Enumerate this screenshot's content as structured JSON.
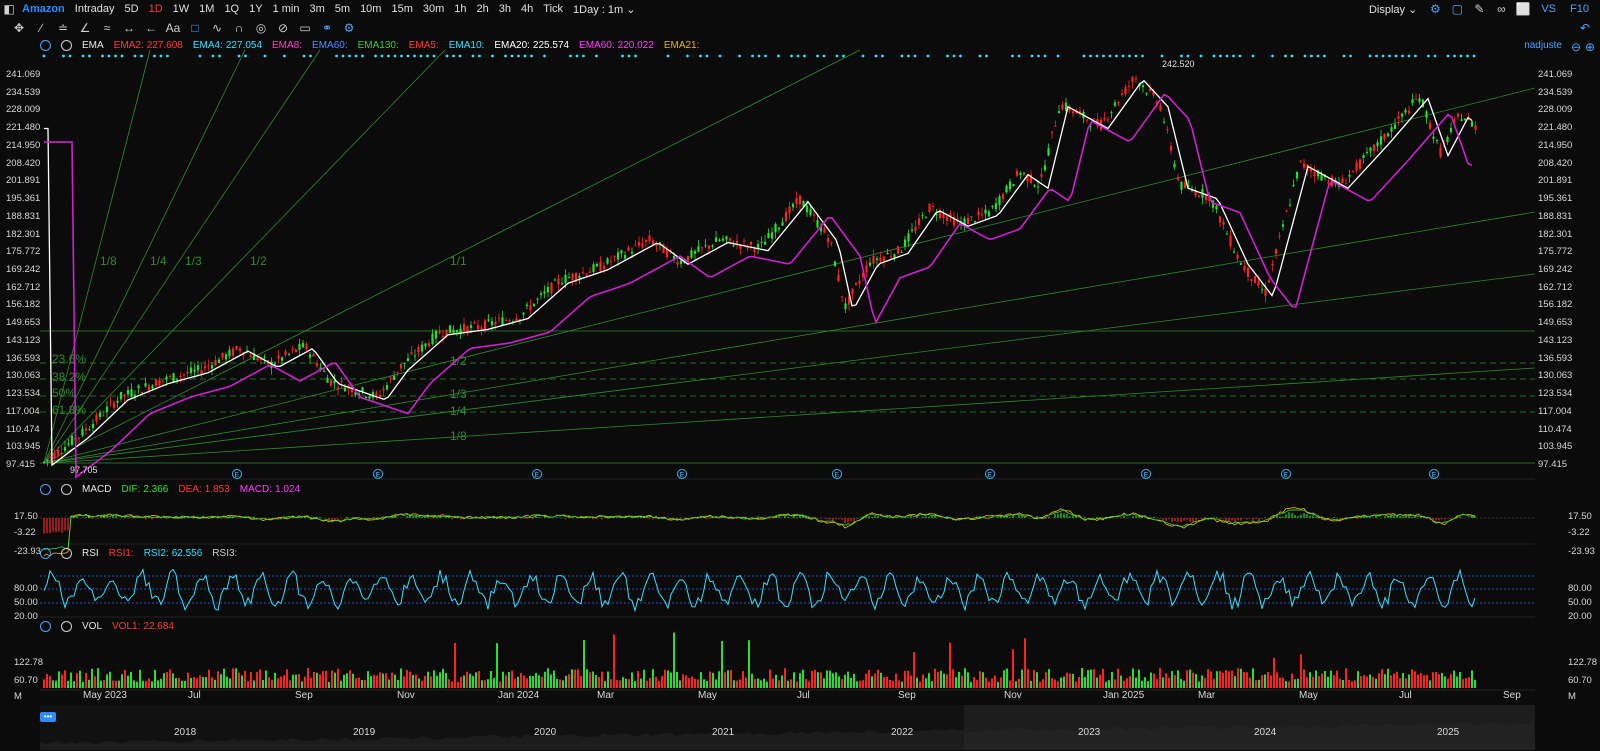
{
  "toolbar": {
    "title": "Amazon",
    "periods": [
      "Intraday",
      "5D",
      "1D",
      "1W",
      "1M",
      "1Q",
      "1Y",
      "1 min",
      "3m",
      "5m",
      "10m",
      "15m",
      "30m",
      "1h",
      "2h",
      "3h",
      "4h",
      "Tick"
    ],
    "active_period": "1D",
    "interval_select": "1Day : 1m",
    "display_label": "Display",
    "vs_label": "VS",
    "f10_label": "F10"
  },
  "main_legend": {
    "indicator": "EMA",
    "items": [
      {
        "label": "EMA2:",
        "value": "227.608",
        "color": "#ff3b3b"
      },
      {
        "label": "EMA4:",
        "value": "227.054",
        "color": "#35e0ff"
      },
      {
        "label": "EMA8:",
        "value": "",
        "color": "#ff40d0"
      },
      {
        "label": "EMA60:",
        "value": "",
        "color": "#4f8cff"
      },
      {
        "label": "EMA130:",
        "value": "",
        "color": "#3fcf3f"
      },
      {
        "label": "EMA5:",
        "value": "",
        "color": "#ff3b3b"
      },
      {
        "label": "EMA10:",
        "value": "",
        "color": "#35e0ff"
      },
      {
        "label": "EMA20:",
        "value": "225.574",
        "color": "#ffffff"
      },
      {
        "label": "EMA60:",
        "value": "220.022",
        "color": "#ff40ff"
      },
      {
        "label": "EMA21:",
        "value": "",
        "color": "#e8b400"
      }
    ],
    "user": "nadjuste"
  },
  "main_chart": {
    "y_ticks": [
      "241.069",
      "234.539",
      "228.009",
      "221.480",
      "214.950",
      "208.420",
      "201.891",
      "195.361",
      "188.831",
      "182.301",
      "175.772",
      "169.242",
      "162.712",
      "156.182",
      "149.653",
      "143.123",
      "136.593",
      "130.063",
      "123.534",
      "117.004",
      "110.474",
      "103.945",
      "97.415"
    ],
    "high_label": "242.520",
    "low_label": "97.705",
    "fan_labels": [
      "1/8",
      "1/4",
      "1/3",
      "1/2",
      "1/1",
      "1/2",
      "1/3",
      "1/4",
      "1/8"
    ],
    "fib_labels": [
      "23.6%",
      "38.2%",
      "50%",
      "61.8%"
    ],
    "event_marker": "E"
  },
  "macd": {
    "name": "MACD",
    "items": [
      {
        "label": "DIF:",
        "value": "2.366",
        "color": "#3fe03f"
      },
      {
        "label": "DEA:",
        "value": "1.853",
        "color": "#ff3b3b"
      },
      {
        "label": "MACD:",
        "value": "1.024",
        "color": "#ff40ff"
      }
    ],
    "y_ticks": [
      "17.50",
      "-3.22",
      "-23.93"
    ]
  },
  "rsi": {
    "name": "RSI",
    "items": [
      {
        "label": "RSI1:",
        "value": "",
        "color": "#ff3b3b"
      },
      {
        "label": "RSI2:",
        "value": "62.556",
        "color": "#35e0ff"
      },
      {
        "label": "RSI3:",
        "value": "",
        "color": "#cccccc"
      }
    ],
    "y_ticks": [
      "80.00",
      "50.00",
      "20.00"
    ]
  },
  "vol": {
    "name": "VOL",
    "items": [
      {
        "label": "VOL1:",
        "value": "22.684",
        "color": "#ff3b3b"
      }
    ],
    "y_ticks": [
      "122.78",
      "60.70",
      "M"
    ]
  },
  "x_axis": [
    "May 2023",
    "Jul",
    "Sep",
    "Nov",
    "Jan 2024",
    "Mar",
    "May",
    "Jul",
    "Sep",
    "Nov",
    "Jan 2025",
    "Mar",
    "May",
    "Jul",
    "Sep"
  ],
  "overview_years": [
    "2018",
    "2019",
    "2020",
    "2021",
    "2022",
    "2023",
    "2024",
    "2025"
  ],
  "overview_button": "•••",
  "colors": {
    "up": "#22e22e",
    "down": "#ff2020",
    "ema_white": "#ffffff",
    "ema_magenta": "#d020d0",
    "accent": "#2d8cff",
    "fan": "#2e8b2e"
  }
}
